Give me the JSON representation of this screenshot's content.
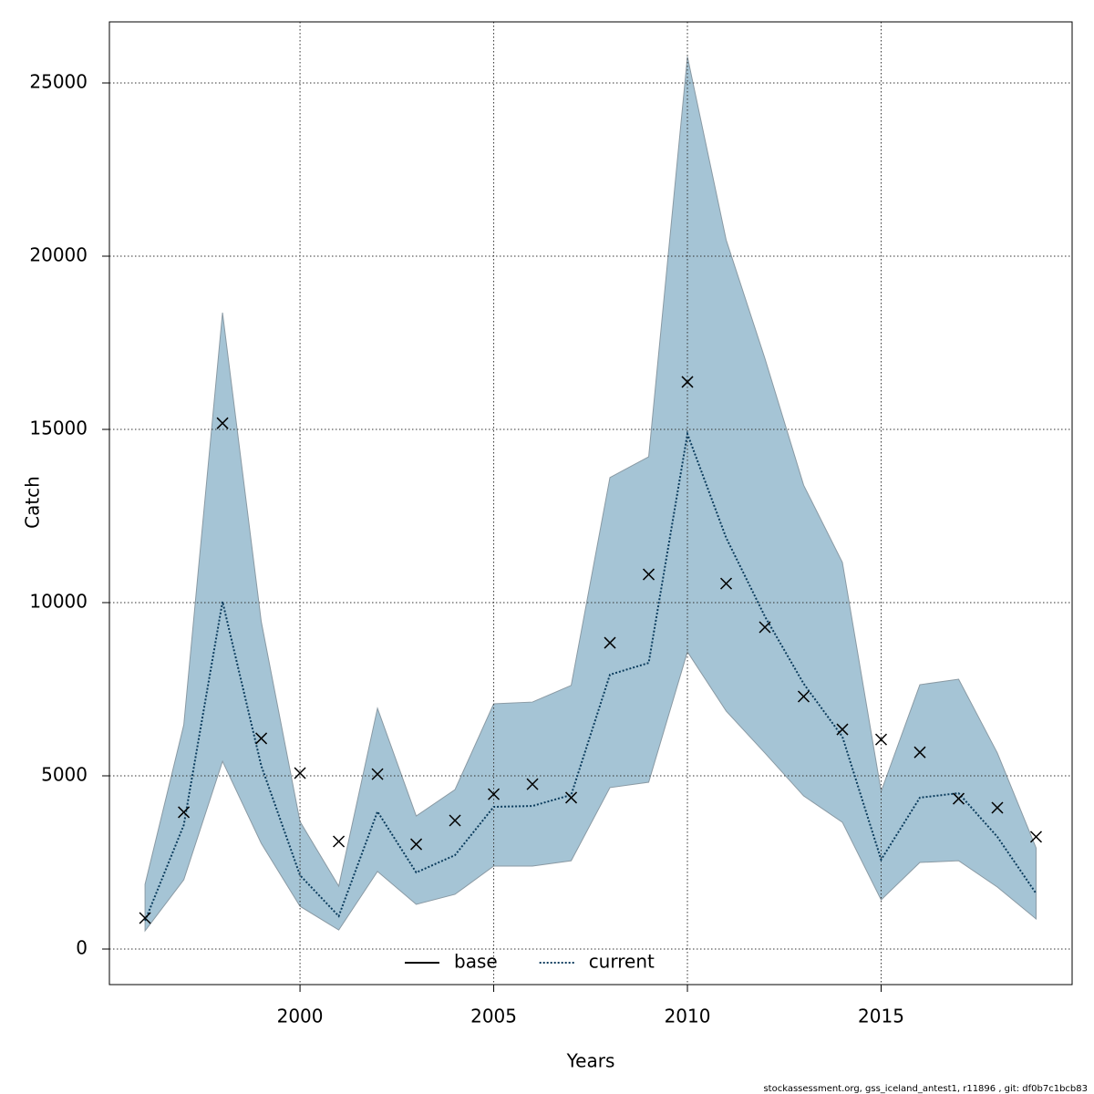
{
  "chart_data": {
    "type": "line",
    "x_label": "Years",
    "y_label": "Catch",
    "footer": "stockassessment.org, gss_iceland_antest1, r11896 , git: df0b7c1bcb83",
    "x": [
      1996,
      1997,
      1998,
      1999,
      2000,
      2001,
      2002,
      2003,
      2004,
      2005,
      2006,
      2007,
      2008,
      2009,
      2010,
      2011,
      2012,
      2013,
      2014,
      2015,
      2016,
      2017,
      2018,
      2019
    ],
    "series": [
      {
        "name": "base",
        "color": "#000000",
        "dash": false,
        "values": [
          null,
          null,
          null,
          null,
          null,
          null,
          null,
          null,
          null,
          null,
          null,
          null,
          null,
          null,
          null,
          null,
          null,
          null,
          null,
          null,
          null,
          null,
          null,
          null
        ]
      },
      {
        "name": "current",
        "color": "#0b3c5d",
        "dash": true,
        "values": [
          815,
          3580,
          10030,
          5290,
          2130,
          950,
          3970,
          2210,
          2710,
          4105,
          4130,
          4450,
          7920,
          8260,
          14870,
          11870,
          9600,
          7660,
          6130,
          2580,
          4370,
          4500,
          3240,
          1605
        ]
      }
    ],
    "band": {
      "color": "#a5c4d5",
      "upper": [
        1870,
        6470,
        18370,
        9450,
        3680,
        1815,
        6950,
        3840,
        4600,
        7080,
        7130,
        7610,
        13610,
        14210,
        25760,
        20470,
        17050,
        13390,
        11160,
        4550,
        7630,
        7790,
        5660,
        2920
      ],
      "lower": [
        525,
        2000,
        5420,
        3050,
        1235,
        550,
        2240,
        1290,
        1580,
        2395,
        2395,
        2550,
        4660,
        4815,
        8580,
        6870,
        5660,
        4420,
        3660,
        1420,
        2500,
        2550,
        1790,
        870
      ]
    },
    "observed": [
      895,
      3950,
      15180,
      6080,
      5080,
      3105,
      5050,
      3025,
      3710,
      4470,
      4760,
      4370,
      8840,
      10815,
      16370,
      10550,
      9290,
      7290,
      6340,
      6050,
      5680,
      4340,
      4080,
      3240
    ],
    "xlim": [
      1995.08,
      2019.93
    ],
    "ylim": [
      -1026,
      26763
    ],
    "xticks": [
      2000,
      2005,
      2010,
      2015
    ],
    "yticks": [
      0,
      5000,
      10000,
      15000,
      20000,
      25000
    ],
    "grid": true,
    "legend": "bottom"
  }
}
